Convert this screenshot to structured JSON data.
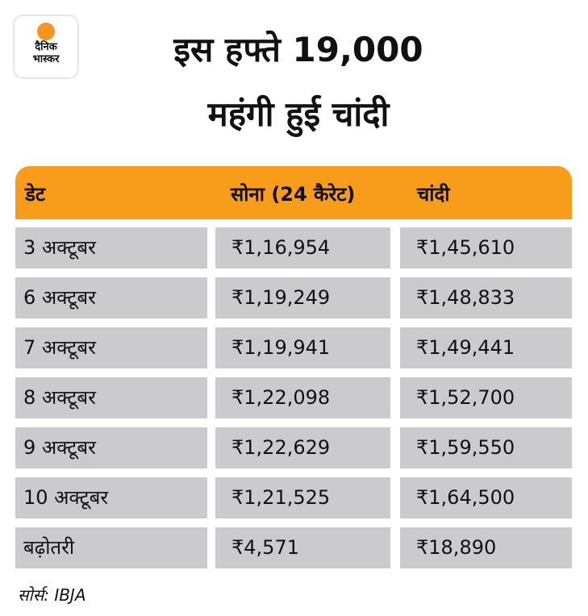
{
  "logo": {
    "line1": "दैनिक",
    "line2": "भास्कर"
  },
  "title": {
    "line1": "इस हफ्ते 19,000",
    "line2": "महंगी हुई चांदी"
  },
  "table": {
    "headers": [
      "डेट",
      "सोना (24 कैरेट)",
      "चांदी"
    ],
    "rows": [
      [
        "3 अक्टूबर",
        "₹1,16,954",
        "₹1,45,610"
      ],
      [
        "6 अक्टूबर",
        "₹1,19,249",
        "₹1,48,833"
      ],
      [
        "7 अक्टूबर",
        "₹1,19,941",
        "₹1,49,441"
      ],
      [
        "8 अक्टूबर",
        "₹1,22,098",
        "₹1,52,700"
      ],
      [
        "9 अक्टूबर",
        "₹1,22,629",
        "₹1,59,550"
      ],
      [
        "10 अक्टूबर",
        "₹1,21,525",
        "₹1,64,500"
      ],
      [
        "बढ़ोतरी",
        "₹4,571",
        "₹18,890"
      ]
    ]
  },
  "source": "सोर्स: IBJA",
  "colors": {
    "header": "#f89c1c",
    "cell": "#cbcbcd"
  }
}
